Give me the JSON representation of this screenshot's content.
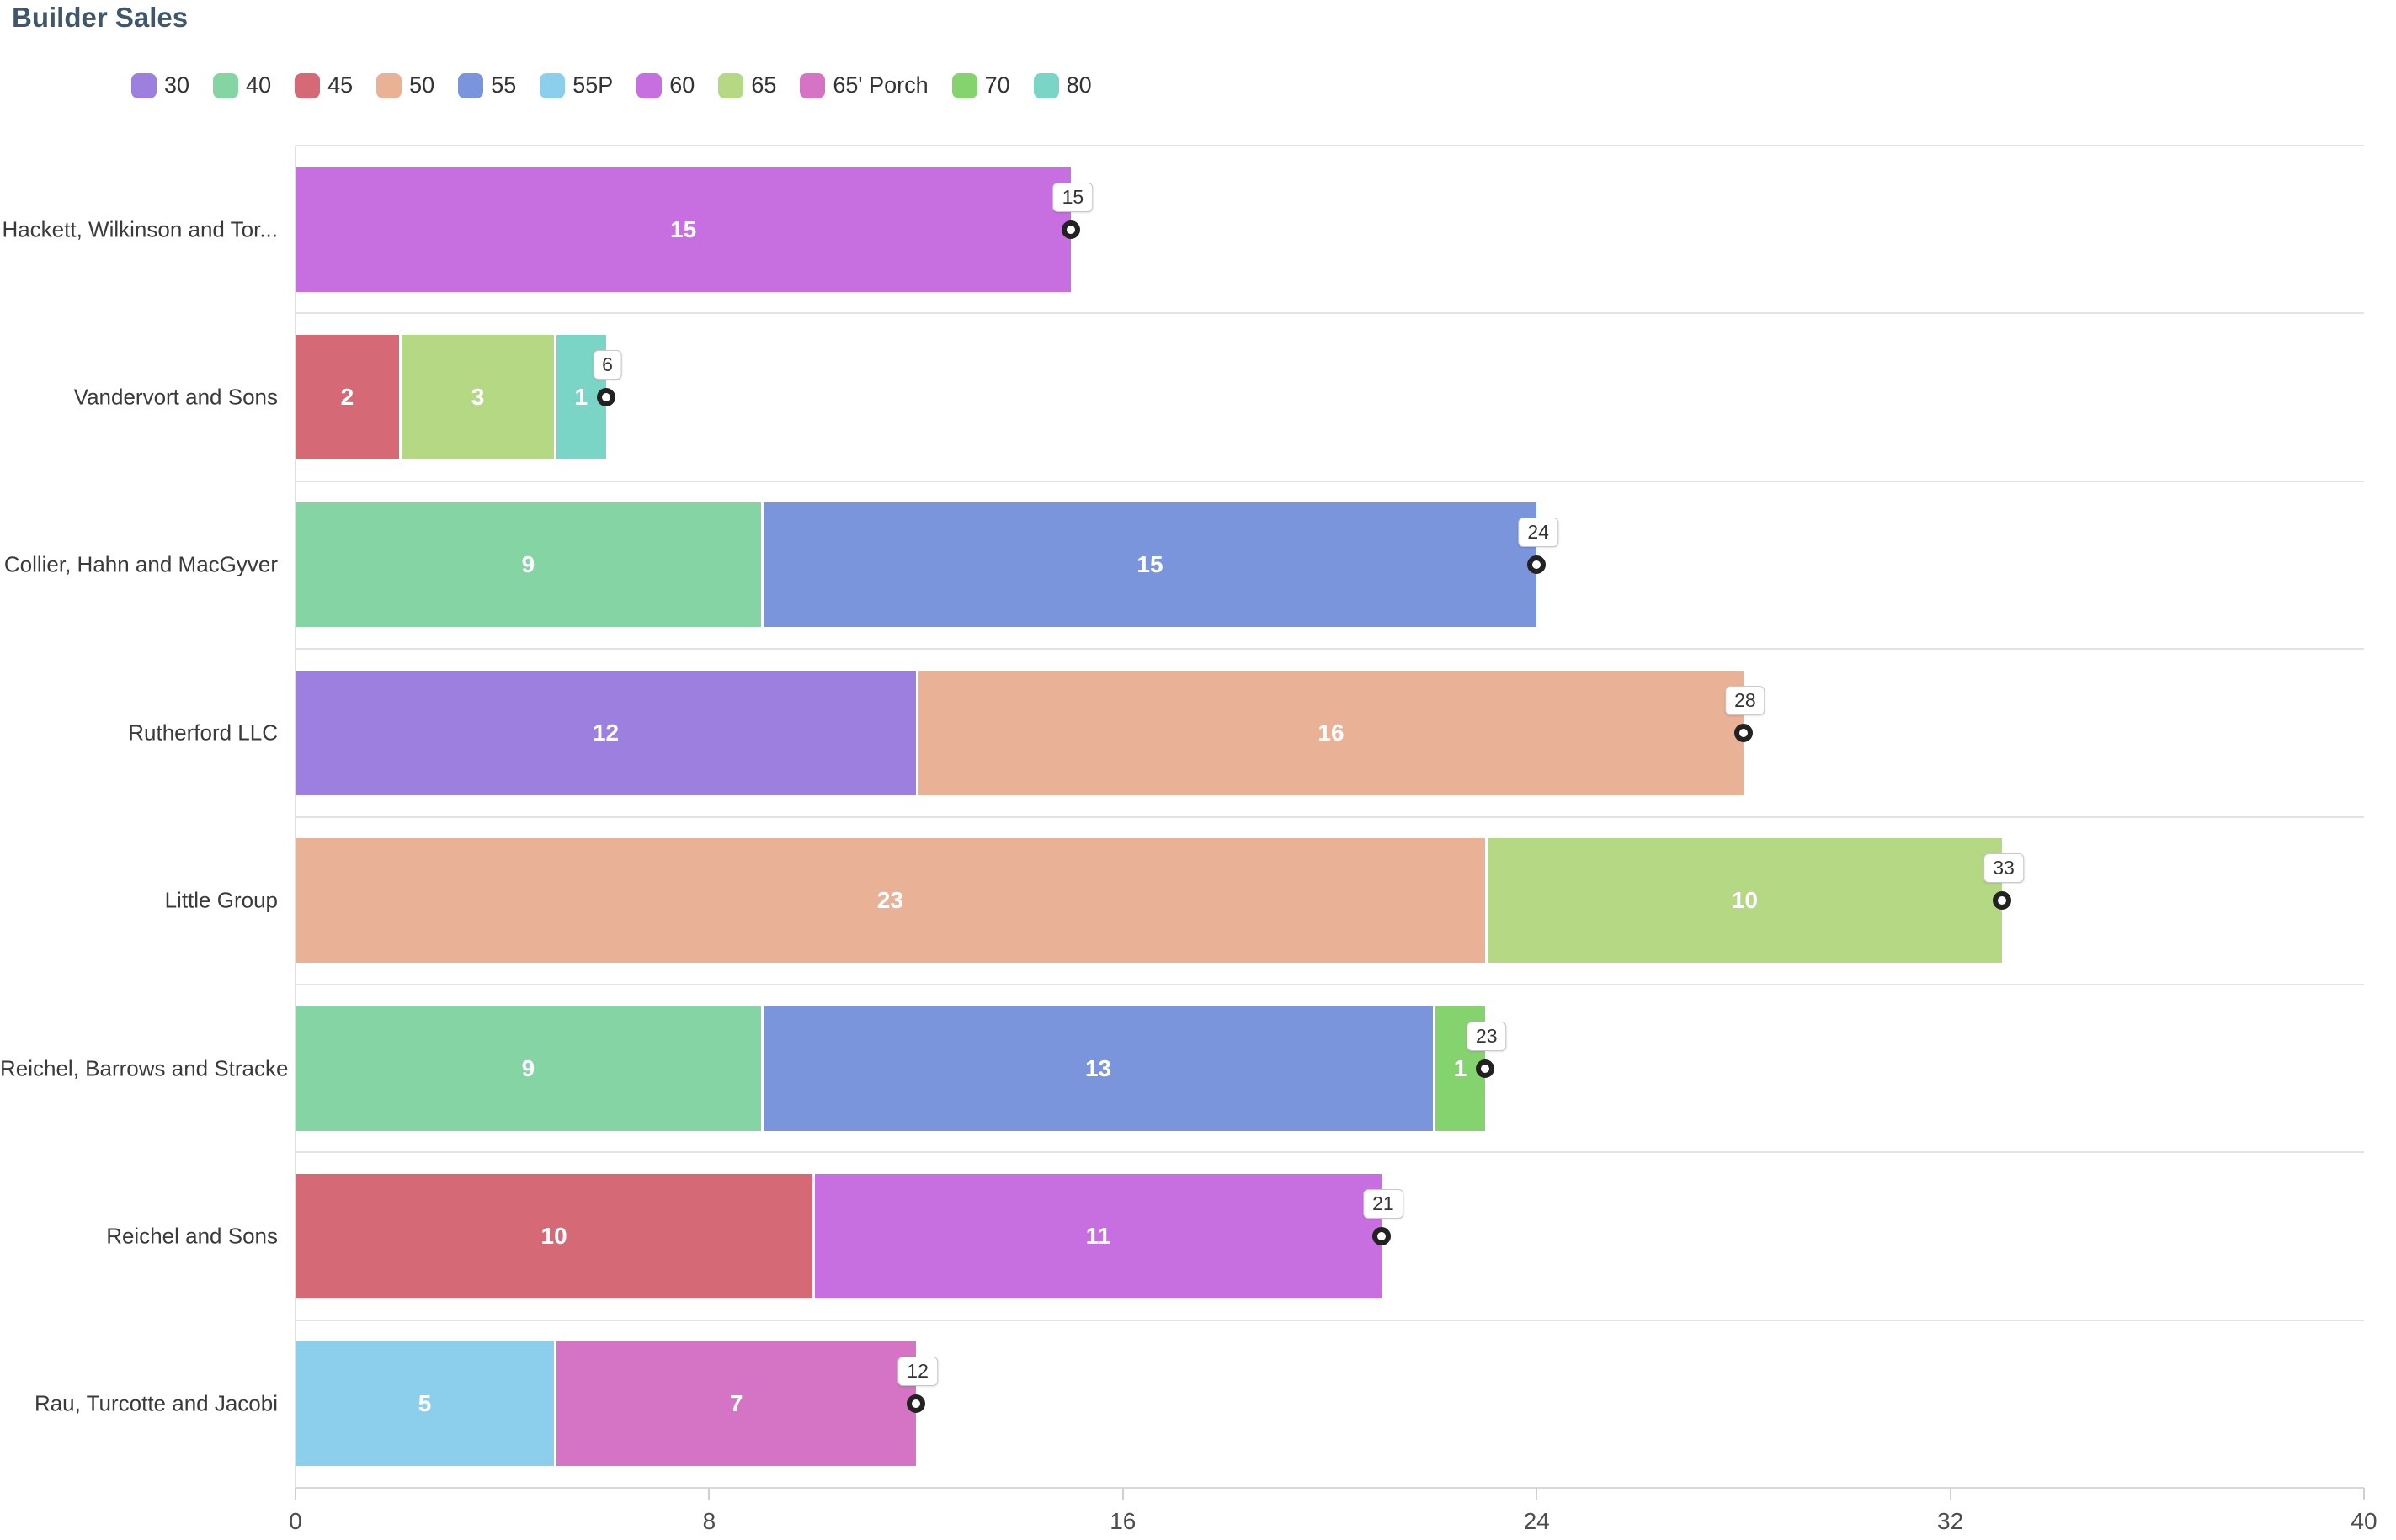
{
  "header": {
    "title": "Builder Sales"
  },
  "chart_data": {
    "type": "bar",
    "orientation": "horizontal",
    "stacked": true,
    "title": "Builder Sales",
    "xlabel": "",
    "ylabel": "",
    "xlim": [
      0,
      40
    ],
    "x_ticks": [
      "0",
      "8",
      "16",
      "24",
      "32",
      "40"
    ],
    "grid": "horizontal-row-separators",
    "legend_position": "top",
    "legend": [
      {
        "label": "30",
        "color": "#9d7fe0"
      },
      {
        "label": "40",
        "color": "#85d5a4"
      },
      {
        "label": "45",
        "color": "#d56a76"
      },
      {
        "label": "50",
        "color": "#e9b196"
      },
      {
        "label": "55",
        "color": "#7b95dc"
      },
      {
        "label": "55P",
        "color": "#8ccfec"
      },
      {
        "label": "60",
        "color": "#c76fe0"
      },
      {
        "label": "65",
        "color": "#b4d884"
      },
      {
        "label": "65' Porch",
        "color": "#d573c5"
      },
      {
        "label": "70",
        "color": "#85d36f"
      },
      {
        "label": "80",
        "color": "#7bd5c6"
      }
    ],
    "categories": [
      "Hackett, Wilkinson and Tor...",
      "Vandervort and Sons",
      "Collier, Hahn and MacGyver",
      "Rutherford LLC",
      "Little Group",
      "Reichel, Barrows and Stracke",
      "Reichel and Sons",
      "Rau, Turcotte and Jacobi"
    ],
    "rows": [
      {
        "builder": "Hackett, Wilkinson and Tor...",
        "segments": [
          {
            "series": "60",
            "value": 15
          }
        ],
        "total": 15
      },
      {
        "builder": "Vandervort and Sons",
        "segments": [
          {
            "series": "45",
            "value": 2
          },
          {
            "series": "65",
            "value": 3
          },
          {
            "series": "80",
            "value": 1
          }
        ],
        "total": 6
      },
      {
        "builder": "Collier, Hahn and MacGyver",
        "segments": [
          {
            "series": "40",
            "value": 9
          },
          {
            "series": "55",
            "value": 15
          }
        ],
        "total": 24
      },
      {
        "builder": "Rutherford LLC",
        "segments": [
          {
            "series": "30",
            "value": 12
          },
          {
            "series": "50",
            "value": 16
          }
        ],
        "total": 28
      },
      {
        "builder": "Little Group",
        "segments": [
          {
            "series": "50",
            "value": 23
          },
          {
            "series": "65",
            "value": 10
          }
        ],
        "total": 33
      },
      {
        "builder": "Reichel, Barrows and Stracke",
        "segments": [
          {
            "series": "40",
            "value": 9
          },
          {
            "series": "55",
            "value": 13
          },
          {
            "series": "70",
            "value": 1
          }
        ],
        "total": 23
      },
      {
        "builder": "Reichel and Sons",
        "segments": [
          {
            "series": "45",
            "value": 10
          },
          {
            "series": "60",
            "value": 11
          }
        ],
        "total": 21
      },
      {
        "builder": "Rau, Turcotte and Jacobi",
        "segments": [
          {
            "series": "55P",
            "value": 5
          },
          {
            "series": "65' Porch",
            "value": 7
          }
        ],
        "total": 12
      }
    ]
  },
  "colors": {
    "title": "#3f566b",
    "separator": "#e3e3e3",
    "axis_line": "#d9d9d9",
    "tick_label": "#4d4d4d",
    "y_label": "#3a3a3a",
    "segment_label": "#ffffff",
    "marker_ring": "#222222",
    "total_box_border": "#c8c8c8",
    "total_box_text": "#333333"
  }
}
